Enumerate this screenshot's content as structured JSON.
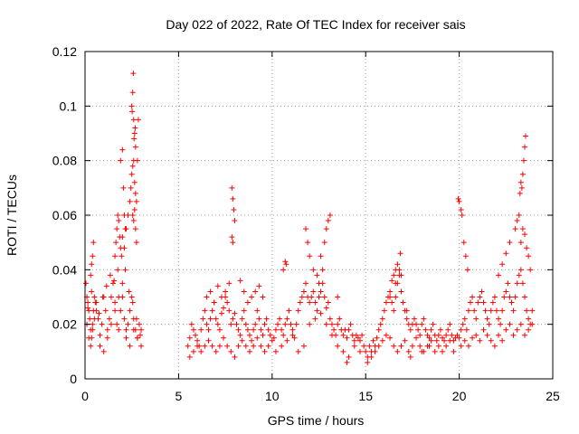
{
  "chart_data": {
    "type": "scatter",
    "title": "Day 022 of 2022, Rate Of TEC Index for receiver sais",
    "xlabel": "GPS time / hours",
    "ylabel": "ROTI / TECUs",
    "xlim": [
      0,
      25
    ],
    "ylim": [
      0,
      0.12
    ],
    "x_ticks": [
      0,
      5,
      10,
      15,
      20,
      25
    ],
    "x_tick_labels": [
      "0",
      "5",
      "10",
      "15",
      "20",
      "25"
    ],
    "y_ticks": [
      0,
      0.02,
      0.04,
      0.06,
      0.08,
      0.1,
      0.12
    ],
    "y_tick_labels": [
      "0",
      "0.02",
      "0.04",
      "0.06",
      "0.08",
      "0.1",
      "0.12"
    ],
    "grid": true,
    "marker": "plus",
    "color": "#ff0000",
    "series": [
      {
        "x": [
          0.05,
          0.1,
          0.15,
          0.2,
          0.25,
          0.3,
          0.35,
          0.4,
          0.45,
          0.5,
          0.6,
          0.7,
          0.8,
          0.9,
          1.0,
          1.1,
          1.2,
          1.3,
          1.4,
          1.5,
          1.6,
          1.7,
          1.8,
          1.9,
          2.0,
          2.1,
          2.2,
          2.3,
          2.4,
          2.5,
          2.6,
          2.7,
          2.8,
          2.9,
          3.0,
          0.1,
          0.2,
          0.3,
          0.4,
          0.5,
          0.6,
          0.8,
          1.0,
          1.2,
          1.4,
          1.6,
          1.8,
          2.0,
          2.2,
          2.4,
          2.6,
          2.8,
          3.0,
          0.15,
          0.35,
          0.55,
          0.75,
          0.95,
          1.15,
          1.35,
          1.55,
          1.75,
          1.95,
          2.15,
          2.35,
          2.55,
          2.75,
          2.95,
          0.3,
          0.35,
          0.4,
          0.45,
          1.6,
          1.65,
          1.7,
          1.75,
          1.8,
          2.0,
          2.1,
          2.2,
          2.3,
          2.4,
          2.45,
          2.5,
          2.55,
          2.6,
          2.65,
          2.7,
          2.75,
          2.8,
          2.85,
          2.5,
          2.52,
          2.55,
          2.58,
          2.6,
          2.62,
          2.65,
          2.68,
          2.7,
          2.55,
          2.6,
          2.65,
          2.7,
          2.75,
          1.9,
          2.0,
          2.05,
          2.1,
          2.15,
          1.85,
          1.9
        ],
        "y": [
          0.035,
          0.03,
          0.028,
          0.025,
          0.022,
          0.018,
          0.015,
          0.02,
          0.025,
          0.03,
          0.028,
          0.022,
          0.016,
          0.02,
          0.03,
          0.025,
          0.018,
          0.022,
          0.03,
          0.035,
          0.028,
          0.02,
          0.018,
          0.025,
          0.03,
          0.022,
          0.018,
          0.02,
          0.025,
          0.03,
          0.022,
          0.018,
          0.015,
          0.02,
          0.018,
          0.02,
          0.015,
          0.012,
          0.018,
          0.022,
          0.025,
          0.012,
          0.01,
          0.015,
          0.02,
          0.025,
          0.03,
          0.035,
          0.015,
          0.012,
          0.018,
          0.015,
          0.012,
          0.026,
          0.032,
          0.028,
          0.024,
          0.03,
          0.034,
          0.038,
          0.036,
          0.04,
          0.045,
          0.04,
          0.032,
          0.028,
          0.022,
          0.016,
          0.038,
          0.042,
          0.045,
          0.05,
          0.045,
          0.05,
          0.055,
          0.06,
          0.058,
          0.052,
          0.048,
          0.055,
          0.06,
          0.065,
          0.07,
          0.075,
          0.078,
          0.08,
          0.072,
          0.068,
          0.065,
          0.08,
          0.095,
          0.1,
          0.098,
          0.105,
          0.112,
          0.095,
          0.088,
          0.09,
          0.092,
          0.085,
          0.06,
          0.058,
          0.062,
          0.055,
          0.05,
          0.08,
          0.084,
          0.07,
          0.06,
          0.055,
          0.052,
          0.048
        ]
      },
      {
        "x": [
          5.5,
          5.6,
          5.7,
          5.8,
          5.9,
          6.0,
          6.1,
          6.2,
          6.3,
          6.4,
          6.5,
          6.6,
          6.7,
          6.8,
          6.9,
          7.0,
          7.1,
          7.2,
          7.3,
          7.4,
          7.5,
          7.6,
          7.7,
          7.8,
          7.9,
          8.0,
          8.1,
          8.2,
          8.3,
          8.4,
          8.5,
          8.6,
          8.7,
          8.8,
          8.9,
          9.0,
          9.1,
          9.2,
          9.3,
          9.4,
          9.5,
          9.6,
          9.7,
          9.8,
          9.9,
          10.0,
          5.6,
          5.8,
          6.0,
          6.2,
          6.4,
          6.6,
          6.8,
          7.0,
          7.2,
          7.4,
          7.6,
          7.8,
          8.0,
          8.2,
          8.4,
          8.6,
          8.8,
          9.0,
          9.2,
          9.4,
          9.6,
          9.8,
          6.5,
          6.7,
          6.9,
          7.1,
          7.3,
          7.5,
          7.7,
          8.3,
          8.5,
          8.7,
          8.9,
          9.1,
          9.3,
          9.5,
          7.85,
          7.9,
          7.95,
          8.0,
          7.85,
          7.9
        ],
        "y": [
          0.012,
          0.015,
          0.02,
          0.018,
          0.016,
          0.014,
          0.012,
          0.018,
          0.022,
          0.025,
          0.02,
          0.018,
          0.022,
          0.025,
          0.028,
          0.022,
          0.02,
          0.018,
          0.024,
          0.026,
          0.03,
          0.028,
          0.025,
          0.02,
          0.022,
          0.024,
          0.02,
          0.018,
          0.016,
          0.022,
          0.025,
          0.02,
          0.018,
          0.016,
          0.014,
          0.018,
          0.02,
          0.025,
          0.022,
          0.018,
          0.016,
          0.02,
          0.022,
          0.018,
          0.016,
          0.014,
          0.008,
          0.01,
          0.012,
          0.01,
          0.012,
          0.014,
          0.012,
          0.01,
          0.012,
          0.015,
          0.012,
          0.01,
          0.008,
          0.012,
          0.014,
          0.012,
          0.01,
          0.012,
          0.015,
          0.012,
          0.01,
          0.012,
          0.03,
          0.032,
          0.028,
          0.034,
          0.03,
          0.032,
          0.035,
          0.036,
          0.032,
          0.028,
          0.03,
          0.032,
          0.034,
          0.03,
          0.07,
          0.066,
          0.062,
          0.058,
          0.052,
          0.05
        ]
      },
      {
        "x": [
          10.1,
          10.2,
          10.3,
          10.4,
          10.5,
          10.6,
          10.7,
          10.8,
          10.9,
          11.0,
          11.1,
          11.2,
          11.3,
          11.4,
          11.5,
          11.6,
          11.7,
          11.8,
          11.9,
          12.0,
          12.1,
          12.2,
          12.3,
          12.4,
          12.5,
          12.6,
          12.7,
          12.8,
          12.9,
          13.0,
          13.1,
          13.2,
          13.3,
          13.4,
          13.5,
          13.6,
          13.7,
          13.8,
          13.9,
          14.0,
          14.1,
          14.2,
          14.3,
          14.4,
          14.5,
          14.6,
          14.7,
          14.8,
          14.9,
          10.2,
          10.5,
          10.8,
          11.1,
          11.4,
          11.7,
          12.0,
          12.3,
          12.6,
          12.9,
          13.2,
          13.5,
          13.8,
          14.1,
          14.4,
          14.7,
          10.6,
          10.7,
          10.75,
          11.8,
          11.9,
          12.0,
          12.2,
          12.4,
          12.6,
          12.8,
          12.9,
          13.0,
          13.1,
          12.7,
          12.5,
          13.5,
          14.0
        ],
        "y": [
          0.015,
          0.018,
          0.02,
          0.022,
          0.018,
          0.016,
          0.02,
          0.022,
          0.025,
          0.02,
          0.018,
          0.015,
          0.02,
          0.025,
          0.028,
          0.03,
          0.032,
          0.035,
          0.03,
          0.028,
          0.03,
          0.032,
          0.028,
          0.025,
          0.03,
          0.032,
          0.035,
          0.03,
          0.026,
          0.028,
          0.022,
          0.02,
          0.018,
          0.016,
          0.02,
          0.022,
          0.018,
          0.016,
          0.018,
          0.015,
          0.018,
          0.02,
          0.016,
          0.014,
          0.016,
          0.015,
          0.014,
          0.016,
          0.012,
          0.01,
          0.012,
          0.014,
          0.016,
          0.01,
          0.012,
          0.02,
          0.022,
          0.024,
          0.02,
          0.016,
          0.012,
          0.01,
          0.008,
          0.012,
          0.01,
          0.04,
          0.043,
          0.042,
          0.055,
          0.05,
          0.045,
          0.04,
          0.038,
          0.045,
          0.05,
          0.055,
          0.058,
          0.06,
          0.04,
          0.035,
          0.03,
          0.006
        ]
      },
      {
        "x": [
          15.0,
          15.1,
          15.2,
          15.3,
          15.4,
          15.5,
          15.6,
          15.7,
          15.8,
          15.9,
          16.0,
          16.1,
          16.2,
          16.3,
          16.4,
          16.5,
          16.6,
          16.7,
          16.8,
          16.9,
          17.0,
          17.1,
          17.2,
          17.3,
          17.4,
          17.5,
          17.6,
          17.7,
          17.8,
          17.9,
          18.0,
          18.1,
          18.2,
          18.3,
          18.4,
          18.5,
          18.6,
          18.7,
          18.8,
          18.9,
          19.0,
          19.1,
          19.2,
          19.3,
          19.4,
          19.5,
          19.6,
          19.7,
          19.8,
          19.9,
          15.1,
          15.3,
          15.5,
          15.7,
          15.9,
          16.1,
          16.3,
          16.5,
          16.7,
          16.9,
          17.1,
          17.3,
          17.5,
          17.7,
          17.9,
          18.1,
          18.3,
          18.5,
          18.7,
          18.9,
          19.1,
          19.3,
          19.5,
          19.7,
          16.4,
          16.5,
          16.6,
          16.7,
          16.8,
          16.85,
          16.9,
          16.6,
          16.3,
          17.2,
          17.4,
          18.0,
          18.4
        ],
        "y": [
          0.01,
          0.008,
          0.012,
          0.01,
          0.014,
          0.012,
          0.015,
          0.018,
          0.02,
          0.022,
          0.025,
          0.028,
          0.03,
          0.032,
          0.028,
          0.025,
          0.03,
          0.035,
          0.038,
          0.032,
          0.028,
          0.025,
          0.022,
          0.02,
          0.018,
          0.02,
          0.022,
          0.02,
          0.018,
          0.016,
          0.02,
          0.022,
          0.018,
          0.016,
          0.015,
          0.018,
          0.02,
          0.016,
          0.014,
          0.016,
          0.018,
          0.015,
          0.014,
          0.016,
          0.018,
          0.02,
          0.016,
          0.014,
          0.015,
          0.016,
          0.006,
          0.008,
          0.01,
          0.012,
          0.014,
          0.016,
          0.015,
          0.012,
          0.01,
          0.012,
          0.014,
          0.01,
          0.012,
          0.015,
          0.012,
          0.01,
          0.012,
          0.014,
          0.01,
          0.012,
          0.01,
          0.012,
          0.014,
          0.01,
          0.036,
          0.038,
          0.04,
          0.042,
          0.04,
          0.046,
          0.038,
          0.035,
          0.03,
          0.025,
          0.008,
          0.01,
          0.012
        ]
      },
      {
        "x": [
          20.0,
          20.1,
          20.2,
          20.3,
          20.4,
          20.5,
          20.6,
          20.7,
          20.8,
          20.9,
          21.0,
          21.1,
          21.2,
          21.3,
          21.4,
          21.5,
          21.6,
          21.7,
          21.8,
          21.9,
          22.0,
          22.1,
          22.2,
          22.3,
          22.4,
          22.5,
          22.6,
          22.7,
          22.8,
          22.9,
          23.0,
          23.1,
          23.2,
          23.3,
          23.4,
          23.5,
          23.6,
          23.7,
          23.8,
          23.9,
          20.1,
          20.3,
          20.5,
          20.7,
          20.9,
          21.1,
          21.3,
          21.5,
          21.7,
          21.9,
          22.1,
          22.3,
          22.5,
          22.7,
          22.9,
          23.1,
          23.3,
          23.5,
          23.7,
          23.9,
          19.95,
          20.0,
          20.1,
          20.15,
          20.25,
          20.35,
          20.45,
          22.1,
          22.3,
          22.5,
          22.7,
          23.0,
          23.1,
          23.2,
          23.25,
          23.3,
          23.35,
          23.4,
          23.45,
          23.5,
          23.55,
          23.3,
          23.4,
          23.5,
          23.6,
          23.7,
          23.8
        ],
        "y": [
          0.015,
          0.018,
          0.02,
          0.022,
          0.018,
          0.025,
          0.028,
          0.03,
          0.025,
          0.022,
          0.028,
          0.03,
          0.032,
          0.028,
          0.025,
          0.022,
          0.02,
          0.025,
          0.028,
          0.03,
          0.025,
          0.022,
          0.02,
          0.025,
          0.03,
          0.032,
          0.035,
          0.03,
          0.028,
          0.025,
          0.03,
          0.035,
          0.038,
          0.04,
          0.035,
          0.03,
          0.025,
          0.022,
          0.02,
          0.025,
          0.012,
          0.014,
          0.012,
          0.015,
          0.016,
          0.014,
          0.018,
          0.016,
          0.014,
          0.012,
          0.016,
          0.014,
          0.018,
          0.02,
          0.016,
          0.018,
          0.02,
          0.016,
          0.018,
          0.02,
          0.066,
          0.065,
          0.062,
          0.06,
          0.05,
          0.045,
          0.04,
          0.038,
          0.042,
          0.046,
          0.05,
          0.055,
          0.058,
          0.06,
          0.068,
          0.072,
          0.07,
          0.075,
          0.08,
          0.085,
          0.089,
          0.05,
          0.055,
          0.053,
          0.048,
          0.045,
          0.04
        ]
      }
    ]
  }
}
